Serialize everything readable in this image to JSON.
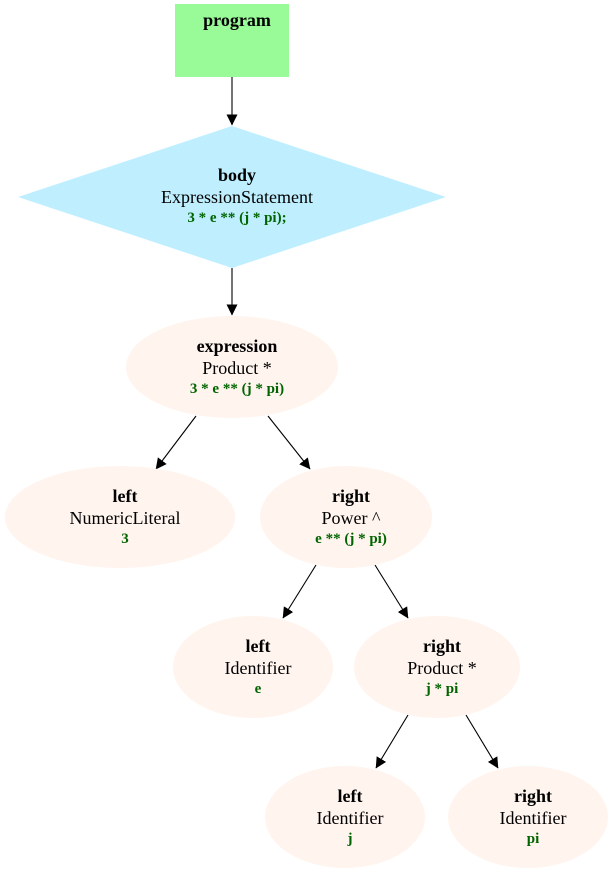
{
  "colors": {
    "program_fill": "#98fb98",
    "statement_fill": "#bfefff",
    "node_fill": "#fff4ee",
    "code_text": "#006400",
    "edge": "#000000"
  },
  "nodes": {
    "program": {
      "role": "program"
    },
    "body": {
      "role": "body",
      "type": "ExpressionStatement",
      "code": "3 * e ** (j * pi);"
    },
    "expression": {
      "role": "expression",
      "type": "Product *",
      "code": "3 * e ** (j * pi)"
    },
    "left_3": {
      "role": "left",
      "type": "NumericLiteral",
      "code": "3"
    },
    "right_power": {
      "role": "right",
      "type": "Power ^",
      "code": "e ** (j * pi)"
    },
    "left_e": {
      "role": "left",
      "type": "Identifier",
      "code": "e"
    },
    "right_product": {
      "role": "right",
      "type": "Product *",
      "code": "j * pi"
    },
    "left_j": {
      "role": "left",
      "type": "Identifier",
      "code": "j"
    },
    "right_pi": {
      "role": "right",
      "type": "Identifier",
      "code": "pi"
    }
  },
  "edges": [
    {
      "from": "program",
      "to": "body"
    },
    {
      "from": "body",
      "to": "expression"
    },
    {
      "from": "expression",
      "to": "left_3"
    },
    {
      "from": "expression",
      "to": "right_power"
    },
    {
      "from": "right_power",
      "to": "left_e"
    },
    {
      "from": "right_power",
      "to": "right_product"
    },
    {
      "from": "right_product",
      "to": "left_j"
    },
    {
      "from": "right_product",
      "to": "right_pi"
    }
  ]
}
